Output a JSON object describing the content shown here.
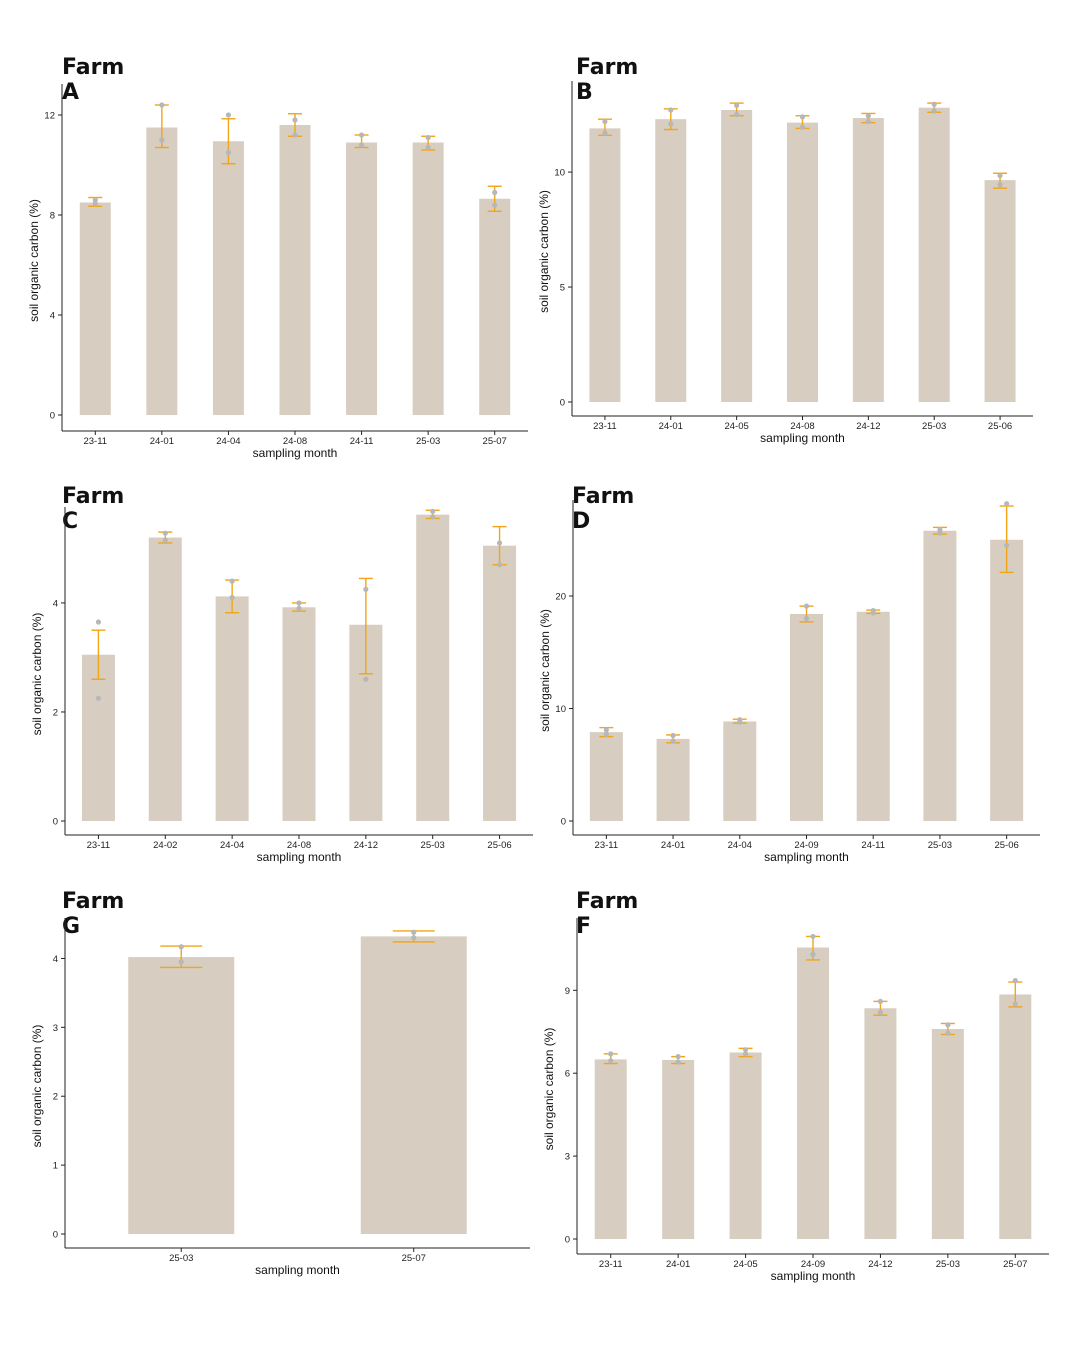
{
  "colors": {
    "bar": "#d7cdc1",
    "error_bar": "#f2a516",
    "point": "#b7b7b7",
    "axis": "#222222"
  },
  "chart_data": [
    {
      "type": "bar",
      "title": "Farm A",
      "categories": [
        "23-11",
        "24-01",
        "24-04",
        "24-08",
        "24-11",
        "25-03",
        "25-07"
      ],
      "values": [
        8.5,
        11.5,
        10.95,
        11.6,
        10.9,
        10.9,
        8.65
      ],
      "error": [
        [
          8.35,
          8.7
        ],
        [
          10.7,
          12.4
        ],
        [
          10.05,
          11.85
        ],
        [
          11.15,
          12.05
        ],
        [
          10.7,
          11.2
        ],
        [
          10.6,
          11.15
        ],
        [
          8.15,
          9.15
        ]
      ],
      "points": [
        [
          8.45,
          8.6
        ],
        [
          11.0,
          12.4
        ],
        [
          10.5,
          12.0
        ],
        [
          11.2,
          11.8
        ],
        [
          10.8,
          11.2
        ],
        [
          10.7,
          11.1
        ],
        [
          8.4,
          8.9
        ]
      ],
      "xlabel": "sampling month",
      "ylabel": "soil organic carbon (%)",
      "ylim": [
        0,
        13
      ],
      "yticks": [
        0,
        4,
        8,
        12
      ]
    },
    {
      "type": "bar",
      "title": "Farm B",
      "categories": [
        "23-11",
        "24-01",
        "24-05",
        "24-08",
        "24-12",
        "25-03",
        "25-06"
      ],
      "values": [
        11.9,
        12.3,
        12.7,
        12.15,
        12.35,
        12.8,
        9.65
      ],
      "error": [
        [
          11.6,
          12.3
        ],
        [
          11.85,
          12.75
        ],
        [
          12.45,
          13.0
        ],
        [
          11.9,
          12.45
        ],
        [
          12.15,
          12.55
        ],
        [
          12.6,
          13.0
        ],
        [
          9.3,
          9.95
        ]
      ],
      "points": [
        [
          11.7,
          12.2
        ],
        [
          12.1,
          12.7
        ],
        [
          12.5,
          12.9
        ],
        [
          11.95,
          12.4
        ],
        [
          12.2,
          12.45
        ],
        [
          12.65,
          12.95
        ],
        [
          9.45,
          9.85
        ]
      ],
      "xlabel": "sampling month",
      "ylabel": "soil organic carbon (%)",
      "ylim": [
        0,
        13.7
      ],
      "yticks": [
        0,
        5,
        10
      ]
    },
    {
      "type": "bar",
      "title": "Farm C",
      "categories": [
        "23-11",
        "24-02",
        "24-04",
        "24-08",
        "24-12",
        "25-03",
        "25-06"
      ],
      "values": [
        3.05,
        5.2,
        4.12,
        3.92,
        3.6,
        5.62,
        5.05
      ],
      "error": [
        [
          2.6,
          3.5
        ],
        [
          5.1,
          5.3
        ],
        [
          3.82,
          4.42
        ],
        [
          3.85,
          4.0
        ],
        [
          2.7,
          4.45
        ],
        [
          5.55,
          5.7
        ],
        [
          4.7,
          5.4
        ]
      ],
      "points": [
        [
          2.25,
          3.65
        ],
        [
          5.15,
          5.28
        ],
        [
          4.1,
          4.4
        ],
        [
          3.9,
          4.0
        ],
        [
          2.6,
          4.25
        ],
        [
          5.58,
          5.68
        ],
        [
          4.7,
          5.1
        ]
      ],
      "xlabel": "sampling month",
      "ylabel": "soil organic carbon (%)",
      "ylim": [
        0,
        5.65
      ],
      "yticks": [
        0,
        2,
        4
      ]
    },
    {
      "type": "bar",
      "title": "Farm D",
      "categories": [
        "23-11",
        "24-01",
        "24-04",
        "24-09",
        "24-11",
        "25-03",
        "25-06"
      ],
      "values": [
        7.9,
        7.3,
        8.85,
        18.4,
        18.6,
        25.8,
        25.0
      ],
      "error": [
        [
          7.5,
          8.3
        ],
        [
          6.95,
          7.65
        ],
        [
          8.7,
          9.05
        ],
        [
          17.7,
          19.1
        ],
        [
          18.45,
          18.75
        ],
        [
          25.5,
          26.1
        ],
        [
          22.1,
          28.0
        ]
      ],
      "points": [
        [
          7.7,
          8.1
        ],
        [
          7.1,
          7.6
        ],
        [
          8.8,
          9.0
        ],
        [
          18.0,
          19.1
        ],
        [
          18.5,
          18.7
        ],
        [
          25.6,
          25.9
        ],
        [
          24.5,
          28.2
        ]
      ],
      "xlabel": "sampling month",
      "ylabel": "soil organic carbon (%)",
      "ylim": [
        0,
        28
      ],
      "yticks": [
        0,
        10,
        20
      ]
    },
    {
      "type": "bar",
      "title": "Farm G",
      "categories": [
        "25-03",
        "25-07"
      ],
      "values": [
        4.02,
        4.32
      ],
      "error": [
        [
          3.87,
          4.18
        ],
        [
          4.24,
          4.4
        ]
      ],
      "points": [
        [
          3.95,
          4.17
        ],
        [
          4.3,
          4.38
        ]
      ],
      "xlabel": "sampling month",
      "ylabel": "soil organic carbon (%)",
      "ylim": [
        0,
        4.5
      ],
      "yticks": [
        0,
        1,
        2,
        3,
        4
      ]
    },
    {
      "type": "bar",
      "title": "Farm F",
      "categories": [
        "23-11",
        "24-01",
        "24-05",
        "24-09",
        "24-12",
        "25-03",
        "25-07"
      ],
      "values": [
        6.5,
        6.48,
        6.75,
        10.55,
        8.35,
        7.6,
        8.85
      ],
      "error": [
        [
          6.35,
          6.7
        ],
        [
          6.35,
          6.6
        ],
        [
          6.6,
          6.9
        ],
        [
          10.1,
          10.95
        ],
        [
          8.1,
          8.6
        ],
        [
          7.4,
          7.8
        ],
        [
          8.4,
          9.3
        ]
      ],
      "points": [
        [
          6.45,
          6.7
        ],
        [
          6.4,
          6.6
        ],
        [
          6.7,
          6.85
        ],
        [
          10.3,
          10.95
        ],
        [
          8.2,
          8.6
        ],
        [
          7.45,
          7.75
        ],
        [
          8.5,
          9.35
        ]
      ],
      "xlabel": "sampling month",
      "ylabel": "soil organic carbon (%)",
      "ylim": [
        0,
        11.4
      ],
      "yticks": [
        0,
        3,
        6,
        9
      ]
    }
  ]
}
